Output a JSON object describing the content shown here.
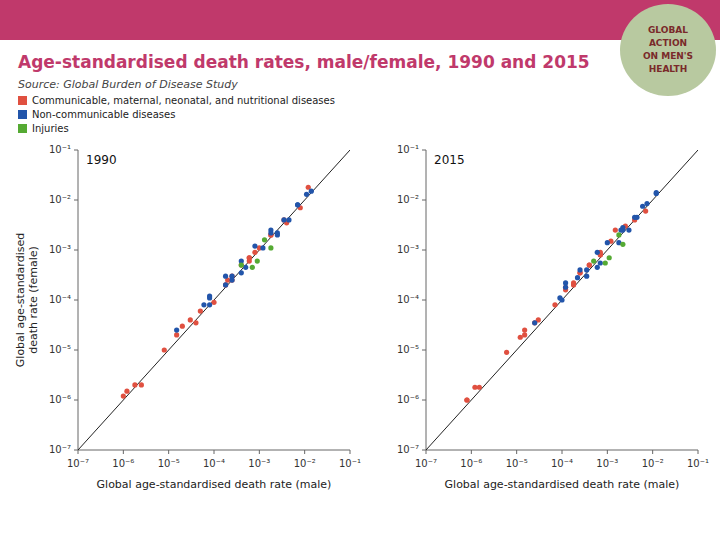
{
  "chart_data": [
    {
      "type": "scatter",
      "title": "Age-standardised death rates, male/female, 1990 and 2015",
      "subtitle": "Source: Global Burden of Disease Study",
      "annotations": [
        "1990",
        "GLOBAL",
        "ACTION",
        "ON MEN'S",
        "HEALTH"
      ],
      "xlabel": "Global age-standardised death rate (male)",
      "ylabel": "Global age-standardised\ndeath rate (female)",
      "log": true,
      "xlim": [
        1e-07,
        0.1
      ],
      "ylim": [
        1e-07,
        0.1
      ],
      "xticks": [
        {
          "value": 1e-07,
          "label": "10⁻⁷"
        },
        {
          "value": 1e-06,
          "label": "10⁻⁶"
        },
        {
          "value": 1e-05,
          "label": "10⁻⁵"
        },
        {
          "value": 0.0001,
          "label": "10⁻⁴"
        },
        {
          "value": 0.001,
          "label": "10⁻³"
        },
        {
          "value": 0.01,
          "label": "10⁻²"
        },
        {
          "value": 0.1,
          "label": "10⁻¹"
        }
      ],
      "yticks": [
        {
          "value": 1e-07,
          "label": "10⁻⁷"
        },
        {
          "value": 1e-06,
          "label": "10⁻⁶"
        },
        {
          "value": 1e-05,
          "label": "10⁻⁵"
        },
        {
          "value": 0.0001,
          "label": "10⁻⁴"
        },
        {
          "value": 0.001,
          "label": "10⁻³"
        },
        {
          "value": 0.01,
          "label": "10⁻²"
        },
        {
          "value": 0.1,
          "label": "10⁻¹"
        }
      ],
      "grid": false,
      "legend": "upper left",
      "series": [
        {
          "name": "Communicable, maternal, neonatal, and nutritional diseases",
          "color": "#e05040",
          "x": [
            0.0001,
            0.00025,
            0.0006,
            0.0018,
            0.004,
            0.012,
            1.5e-05,
            4e-05,
            1.2e-06,
            2.5e-06,
            0.0006,
            0.001,
            0.0002,
            5e-05,
            3e-05,
            2e-05,
            8e-06,
            1.8e-06,
            1e-06,
            0.00025,
            0.0008,
            0.00018,
            0.0004,
            0.0006,
            0.0018,
            0.008,
            0.0035
          ],
          "values": [
            9e-05,
            0.0003,
            0.0006,
            0.002,
            0.0035,
            0.018,
            2e-05,
            3.5e-05,
            1.5e-06,
            2e-06,
            0.0007,
            0.0011,
            0.00025,
            6e-05,
            4e-05,
            3e-05,
            1e-05,
            2e-06,
            1.2e-06,
            0.00025,
            0.0009,
            0.0002,
            0.0005,
            0.0007,
            0.002,
            0.007,
            0.004
          ]
        },
        {
          "name": "Non-communicable diseases",
          "color": "#2255aa",
          "x": [
            0.0025,
            0.007,
            0.014,
            0.0018,
            0.0004,
            8e-05,
            0.00018,
            0.00025,
            0.0005,
            0.0012,
            0.0035,
            1.5e-05,
            0.0004,
            0.0008,
            0.0025,
            0.007,
            0.011,
            0.0018,
            0.0045,
            8e-05,
            0.00025,
            6e-05,
            0.00018,
            8e-05
          ],
          "values": [
            0.002,
            0.008,
            0.015,
            0.0025,
            0.0006,
            0.00012,
            0.0003,
            0.00025,
            0.00045,
            0.0011,
            0.004,
            2.5e-05,
            0.00035,
            0.0012,
            0.0022,
            0.008,
            0.013,
            0.0022,
            0.004,
            0.00011,
            0.0003,
            8e-05,
            0.0002,
            8e-05
          ]
        },
        {
          "name": "Injuries",
          "color": "#55aa33",
          "x": [
            0.0007,
            0.0018,
            0.0013,
            0.0004,
            0.0009
          ],
          "values": [
            0.00045,
            0.0011,
            0.0016,
            0.0005,
            0.0006
          ]
        }
      ]
    },
    {
      "type": "scatter",
      "annotations": [
        "2015"
      ],
      "xlabel": "Global age-standardised death rate (male)",
      "log": true,
      "xlim": [
        1e-07,
        0.1
      ],
      "ylim": [
        1e-07,
        0.1
      ],
      "xticks": [
        {
          "value": 1e-07,
          "label": "10⁻⁷"
        },
        {
          "value": 1e-06,
          "label": "10⁻⁶"
        },
        {
          "value": 1e-05,
          "label": "10⁻⁵"
        },
        {
          "value": 0.0001,
          "label": "10⁻⁴"
        },
        {
          "value": 0.001,
          "label": "10⁻³"
        },
        {
          "value": 0.01,
          "label": "10⁻²"
        },
        {
          "value": 0.1,
          "label": "10⁻¹"
        }
      ],
      "yticks": [
        {
          "value": 1e-07,
          "label": "10⁻⁷"
        },
        {
          "value": 1e-06,
          "label": "10⁻⁶"
        },
        {
          "value": 1e-05,
          "label": "10⁻⁵"
        },
        {
          "value": 0.0001,
          "label": "10⁻⁴"
        },
        {
          "value": 0.001,
          "label": "10⁻³"
        },
        {
          "value": 0.01,
          "label": "10⁻²"
        },
        {
          "value": 0.1,
          "label": "10⁻¹"
        }
      ],
      "grid": false,
      "series": [
        {
          "color": "#e05040",
          "x": [
            7e-05,
            0.00018,
            0.00025,
            0.0007,
            0.0015,
            0.004,
            1.5e-05,
            2.5e-05,
            8e-07,
            1.5e-06,
            0.0004,
            0.0007,
            0.00012,
            3e-05,
            1.5e-05,
            1.2e-05,
            6e-06,
            1.2e-06,
            8e-07,
            0.00018,
            0.0007,
            0.00012,
            0.00025,
            0.0004,
            0.0012,
            0.007,
            0.0025
          ],
          "values": [
            8e-05,
            0.00022,
            0.00035,
            0.0009,
            0.0025,
            0.004,
            2e-05,
            3.5e-05,
            1e-06,
            1.8e-06,
            0.0005,
            0.0008,
            0.00018,
            4e-05,
            2.5e-05,
            1.8e-05,
            9e-06,
            1.8e-06,
            1e-06,
            0.0002,
            0.0008,
            0.00016,
            0.00035,
            0.0005,
            0.0015,
            0.006,
            0.003
          ]
        },
        {
          "color": "#2255aa",
          "x": [
            0.0022,
            0.006,
            0.012,
            0.0022,
            0.0006,
            0.00012,
            0.00025,
            0.00035,
            0.0007,
            0.0018,
            0.0045,
            2.5e-05,
            0.0006,
            0.001,
            0.003,
            0.0075,
            0.012,
            0.002,
            0.004,
            0.00012,
            0.00035,
            9e-05,
            0.00022,
            0.0001
          ],
          "values": [
            0.0025,
            0.0075,
            0.014,
            0.0028,
            0.0009,
            0.00022,
            0.0004,
            0.0003,
            0.00055,
            0.0014,
            0.0045,
            3.5e-05,
            0.00045,
            0.0014,
            0.0025,
            0.0085,
            0.0135,
            0.0025,
            0.0045,
            0.00018,
            0.0004,
            0.00011,
            0.00028,
            0.0001
          ]
        },
        {
          "color": "#55aa33",
          "x": [
            0.0009,
            0.0022,
            0.0018,
            0.0005,
            0.0011
          ],
          "values": [
            0.00055,
            0.0013,
            0.002,
            0.0006,
            0.0007
          ]
        }
      ]
    }
  ]
}
